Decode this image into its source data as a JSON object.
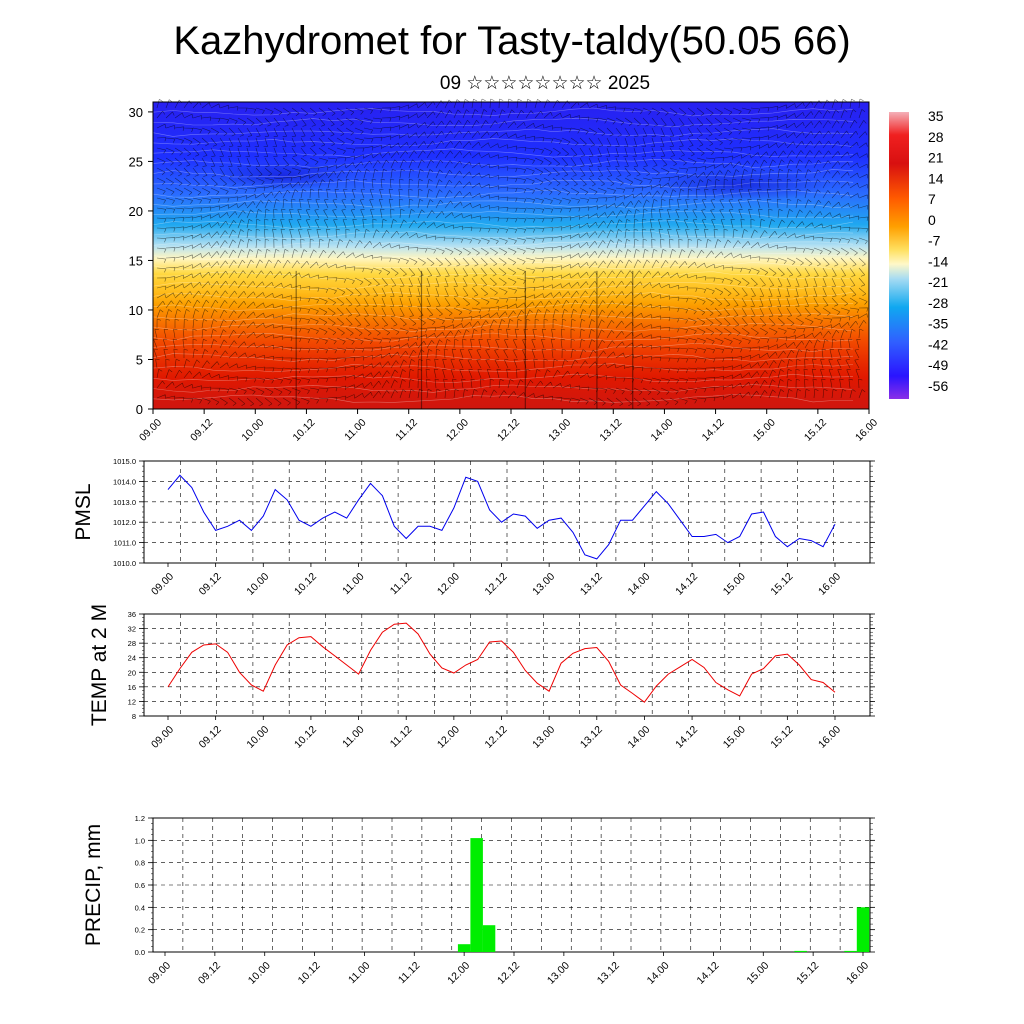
{
  "title": "Kazhydromet for Tasty-taldy(50.05 66)",
  "subtitle": "09 ☆☆☆☆☆☆☆☆ 2025",
  "chart_data": [
    {
      "type": "heatmap",
      "title": "",
      "x_tick_labels": [
        "09.00",
        "09.12",
        "10.00",
        "10.12",
        "11.00",
        "11.12",
        "12.00",
        "12.12",
        "13.00",
        "13.12",
        "14.00",
        "14.12",
        "15.00",
        "15.12",
        "16.00"
      ],
      "y_ticks": [
        0,
        5,
        10,
        15,
        20,
        25,
        30
      ],
      "ylim": [
        0,
        31
      ],
      "colorbar_labels": [
        "35",
        "28",
        "21",
        "14",
        "7",
        "0",
        "-7",
        "-14",
        "-21",
        "-28",
        "-35",
        "-42",
        "-49",
        "-56"
      ],
      "color_scale": [
        "#7a30e0",
        "#3010ff",
        "#2a60ff",
        "#10a8f0",
        "#a8dcf2",
        "#fff8b8",
        "#ffd830",
        "#ff9a00",
        "#ff5a00",
        "#f01800",
        "#c00000",
        "#f07a80"
      ],
      "overlay": "wind barbs"
    },
    {
      "type": "line",
      "ylabel": "PMSL",
      "x_tick_labels": [
        "09.00",
        "09.12",
        "10.00",
        "10.12",
        "11.00",
        "11.12",
        "12.00",
        "12.12",
        "13.00",
        "13.12",
        "14.00",
        "14.12",
        "15.00",
        "15.12",
        "16.00"
      ],
      "y_tick_labels": [
        "1015.0",
        "1014.0",
        "1013.0",
        "1012.0",
        "1011.0",
        "1010.0"
      ],
      "ylim": [
        1010,
        1015
      ],
      "color": "#0000ee",
      "values": [
        1013.6,
        1014.3,
        1013.7,
        1012.5,
        1011.6,
        1011.8,
        1012.1,
        1011.6,
        1012.3,
        1013.6,
        1013.1,
        1012.1,
        1011.8,
        1012.2,
        1012.5,
        1012.2,
        1013.1,
        1013.9,
        1013.3,
        1011.8,
        1011.2,
        1011.8,
        1011.8,
        1011.6,
        1012.7,
        1014.2,
        1014.0,
        1012.6,
        1012.0,
        1012.4,
        1012.3,
        1011.7,
        1012.1,
        1012.2,
        1011.5,
        1010.4,
        1010.2,
        1010.9,
        1012.1,
        1012.1,
        1012.8,
        1013.5,
        1012.9,
        1012.1,
        1011.3,
        1011.3,
        1011.4,
        1011.0,
        1011.3,
        1012.4,
        1012.5,
        1011.3,
        1010.8,
        1011.2,
        1011.1,
        1010.8,
        1011.9
      ]
    },
    {
      "type": "line",
      "ylabel": "TEMP at 2 M",
      "x_tick_labels": [
        "09.00",
        "09.12",
        "10.00",
        "10.12",
        "11.00",
        "11.12",
        "12.00",
        "12.12",
        "13.00",
        "13.12",
        "14.00",
        "14.12",
        "15.00",
        "15.12",
        "16.00"
      ],
      "y_tick_labels": [
        "36",
        "32",
        "28",
        "24",
        "20",
        "16",
        "12",
        "8"
      ],
      "ylim": [
        8,
        36
      ],
      "color": "#ee0000",
      "values": [
        16.0,
        21.0,
        25.5,
        27.5,
        27.8,
        25.5,
        20.0,
        16.5,
        14.8,
        22.0,
        27.5,
        29.5,
        29.8,
        27.0,
        24.5,
        22.0,
        19.5,
        26.0,
        31.0,
        33.2,
        33.5,
        30.5,
        25.0,
        21.2,
        19.8,
        22.0,
        23.5,
        28.3,
        28.6,
        25.5,
        20.5,
        17.0,
        14.8,
        22.5,
        25.2,
        26.5,
        26.8,
        23.0,
        16.5,
        14.2,
        11.8,
        16.2,
        19.5,
        21.5,
        23.5,
        21.3,
        17.2,
        15.2,
        13.5,
        19.5,
        21.0,
        24.5,
        25.0,
        22.0,
        18.0,
        17.2,
        14.5
      ]
    },
    {
      "type": "bar",
      "ylabel": "PRECIP, mm",
      "x_tick_labels": [
        "09.00",
        "09.12",
        "10.00",
        "10.12",
        "11.00",
        "11.12",
        "12.00",
        "12.12",
        "13.00",
        "13.12",
        "14.00",
        "14.12",
        "15.00",
        "15.12",
        "16.00"
      ],
      "y_tick_labels": [
        "1.2",
        "1.0",
        "0.8",
        "0.6",
        "0.4",
        "0.2",
        "0.0"
      ],
      "ylim": [
        0,
        1.2
      ],
      "color": "#00ee00",
      "values": [
        0,
        0,
        0,
        0,
        0,
        0,
        0,
        0,
        0,
        0,
        0,
        0,
        0,
        0,
        0,
        0,
        0,
        0,
        0,
        0,
        0,
        0,
        0,
        0,
        0.07,
        1.02,
        0.24,
        0,
        0,
        0,
        0,
        0,
        0,
        0,
        0,
        0,
        0,
        0,
        0,
        0,
        0,
        0,
        0,
        0,
        0,
        0,
        0,
        0,
        0,
        0,
        0,
        0.01,
        0,
        0,
        0,
        0.01,
        0.4
      ]
    }
  ]
}
